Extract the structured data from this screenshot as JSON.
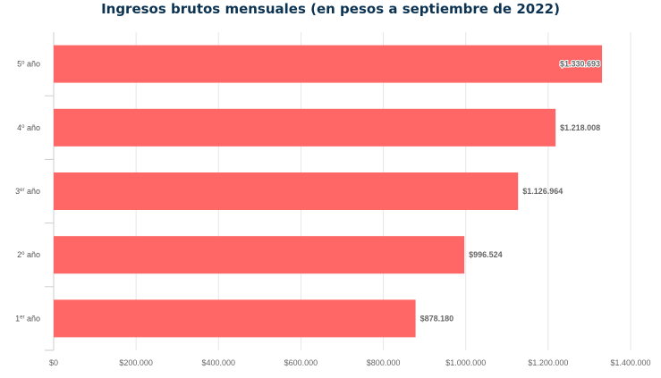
{
  "chart_data": {
    "type": "bar",
    "orientation": "horizontal",
    "title": "Ingresos brutos mensuales (en pesos a septiembre de 2022)",
    "categories": [
      {
        "base": "5",
        "sup": "o",
        "rest": " año"
      },
      {
        "base": "4",
        "sup": "o",
        "rest": " año"
      },
      {
        "base": "3",
        "sup": "er",
        "rest": " año"
      },
      {
        "base": "2",
        "sup": "o",
        "rest": " año"
      },
      {
        "base": "1",
        "sup": "er",
        "rest": " año"
      }
    ],
    "values": [
      1330693,
      1218008,
      1126964,
      996524,
      878180
    ],
    "data_labels": [
      "$1.330.693",
      "$1.218.008",
      "$1.126.964",
      "$996.524",
      "$878.180"
    ],
    "xlim": [
      0,
      1400000
    ],
    "x_ticks": [
      0,
      200000,
      400000,
      600000,
      800000,
      1000000,
      1200000,
      1400000
    ],
    "x_tick_labels": [
      "$0",
      "$200.000",
      "$400.000",
      "$600.000",
      "$800.000",
      "$1.000.000",
      "$1.200.000",
      "$1.400.000"
    ],
    "grid": "vertical",
    "legend": "none",
    "bar_color": "#ff6666"
  }
}
